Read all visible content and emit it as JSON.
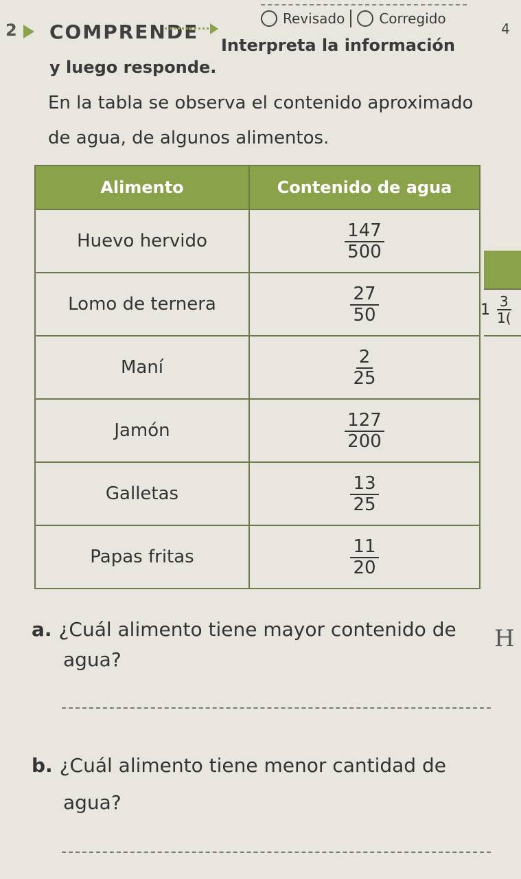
{
  "header": {
    "reviewed_label": "Revisado",
    "corrected_label": "Corregido",
    "page_number": "4"
  },
  "question": {
    "number": "2",
    "tag": "COMPRENDE",
    "instruction_line1": "Interpreta la información",
    "instruction_line2": "y luego responde.",
    "intro_line1": "En la tabla se observa el contenido aproximado",
    "intro_line2": "de agua, de algunos alimentos."
  },
  "table": {
    "headers": [
      "Alimento",
      "Contenido de agua"
    ],
    "rows": [
      {
        "food": "Huevo hervido",
        "num": "147",
        "den": "500"
      },
      {
        "food": "Lomo de ternera",
        "num": "27",
        "den": "50"
      },
      {
        "food": "Maní",
        "num": "2",
        "den": "25"
      },
      {
        "food": "Jamón",
        "num": "127",
        "den": "200"
      },
      {
        "food": "Galletas",
        "num": "13",
        "den": "25"
      },
      {
        "food": "Papas fritas",
        "num": "11",
        "den": "20"
      }
    ]
  },
  "side_fragment": {
    "whole": "1",
    "num": "3",
    "den": "1("
  },
  "questions": {
    "a_letter": "a.",
    "a_line1": "¿Cuál alimento tiene mayor contenido de",
    "a_line2": "agua?",
    "b_letter": "b.",
    "b_line1": "¿Cuál alimento tiene menor cantidad de",
    "b_line2": "agua?"
  },
  "handwriting": {
    "a_mark": "H"
  }
}
